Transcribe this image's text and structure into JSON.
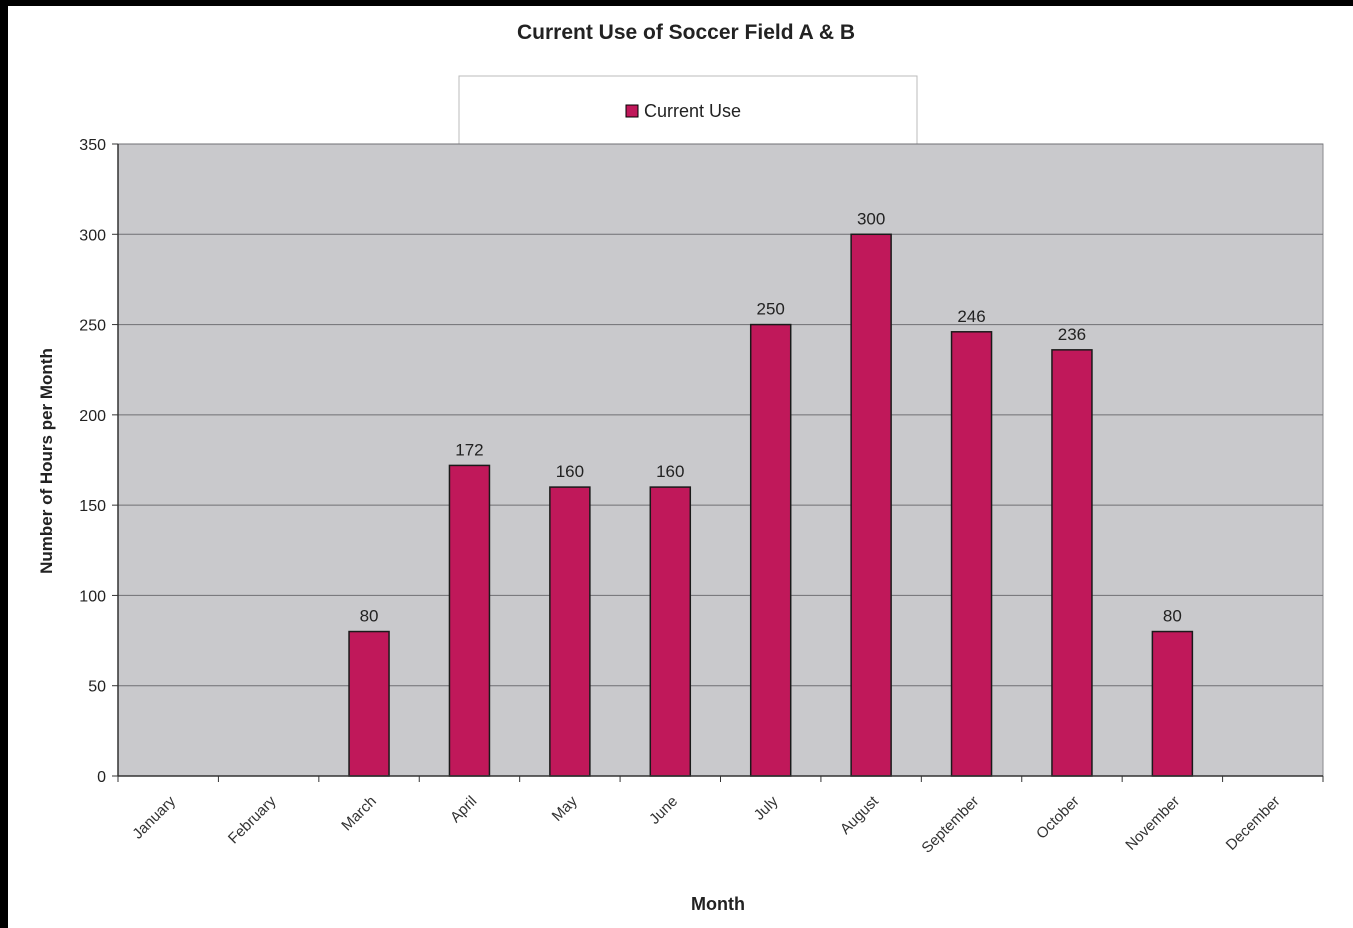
{
  "chart_data": {
    "type": "bar",
    "title": "Current Use of Soccer Field A & B",
    "xlabel": "Month",
    "ylabel": "Number of Hours per Month",
    "categories": [
      "January",
      "February",
      "March",
      "April",
      "May",
      "June",
      "July",
      "August",
      "September",
      "October",
      "November",
      "December"
    ],
    "series": [
      {
        "name": "Current Use",
        "values": [
          0,
          0,
          80,
          172,
          160,
          160,
          250,
          300,
          246,
          236,
          80,
          0
        ],
        "data_labels": [
          "",
          "",
          "80",
          "172",
          "160",
          "160",
          "250",
          "300",
          "246",
          "236",
          "80",
          ""
        ]
      }
    ],
    "ylim": [
      0,
      350
    ],
    "yticks": [
      "0",
      "50",
      "100",
      "150",
      "200",
      "250",
      "300",
      "350"
    ],
    "grid": true,
    "legend_position": "top-center",
    "colors": {
      "bar": "#c0185a",
      "plot_background": "#c9c9cc",
      "gridline": "#6f6f73"
    }
  }
}
